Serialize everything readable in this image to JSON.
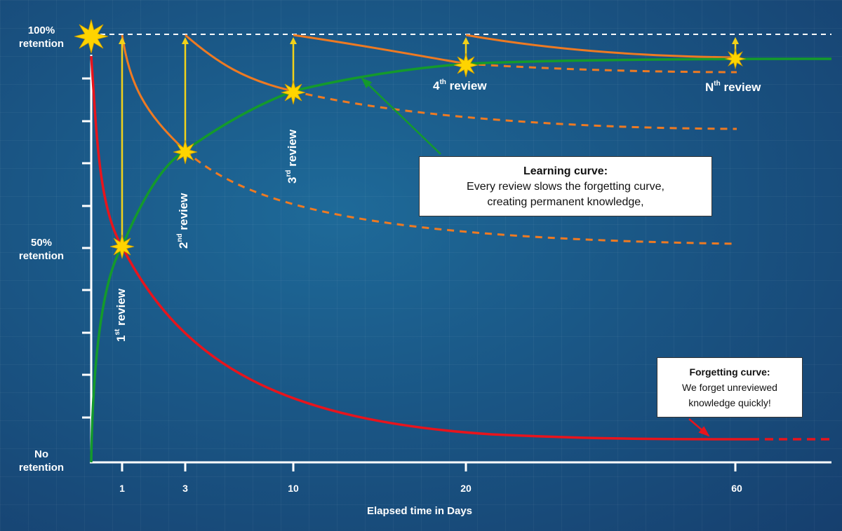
{
  "y_axis": {
    "top_label": [
      "100%",
      "retention"
    ],
    "mid_label": [
      "50%",
      "retention"
    ],
    "bottom_label": [
      "No",
      "retention"
    ]
  },
  "x_axis": {
    "title": "Elapsed time in Days",
    "ticks": [
      "1",
      "3",
      "10",
      "20",
      "60"
    ]
  },
  "reviews": [
    {
      "num": "1",
      "sup": "st",
      "word": "review"
    },
    {
      "num": "2",
      "sup": "nd",
      "word": "review"
    },
    {
      "num": "3",
      "sup": "rd",
      "word": "review"
    },
    {
      "num": "4",
      "sup": "th",
      "word": "review"
    },
    {
      "num": "N",
      "sup": "th",
      "word": "review"
    }
  ],
  "learning_box": {
    "title": "Learning curve:",
    "line1": "Every review slows the forgetting curve,",
    "line2": "creating permanent knowledge,"
  },
  "forgetting_box": {
    "title": "Forgetting curve:",
    "line1": "We forget unreviewed",
    "line2": "knowledge quickly!"
  },
  "colors": {
    "forgetting": "#e8141c",
    "learning": "#149a2c",
    "review_curve": "#ee7a22",
    "review_arrow": "#f2d21a",
    "star": "#ffd400",
    "axis": "#ffffff"
  }
}
